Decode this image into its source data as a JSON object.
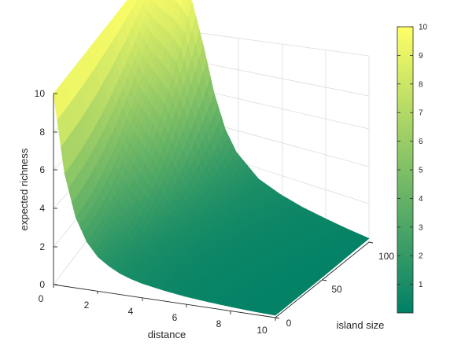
{
  "chart_data": {
    "type": "surface",
    "colormap": "summer",
    "colormap_low": "#008066",
    "colormap_high": "#ffff66",
    "xlabel": "distance",
    "ylabel": "island size",
    "zlabel": "expected richness",
    "xlim": [
      0,
      10
    ],
    "ylim": [
      0,
      100
    ],
    "zlim": [
      0,
      10
    ],
    "x_ticks": [
      "0",
      "2",
      "4",
      "6",
      "8",
      "10"
    ],
    "y_ticks": [
      "0",
      "50",
      "100"
    ],
    "z_ticks": [
      "0",
      "2",
      "4",
      "6",
      "8",
      "10"
    ],
    "colorbar_ticks": [
      "1",
      "2",
      "3",
      "4",
      "5",
      "6",
      "7",
      "8",
      "9",
      "10"
    ],
    "colorbar_range": [
      0,
      10
    ],
    "grid": true,
    "surface_samples": {
      "distance": [
        0,
        0.5,
        1,
        1.5,
        2,
        2.5,
        3,
        3.5,
        4,
        5,
        6,
        7,
        8,
        9,
        10
      ],
      "small_island": [
        10,
        5.9,
        3.7,
        2.5,
        1.8,
        1.4,
        1.1,
        0.9,
        0.75,
        0.55,
        0.4,
        0.3,
        0.22,
        0.16,
        0.12
      ],
      "large_island": [
        10,
        10,
        10,
        10,
        9.4,
        7.3,
        4.9,
        3.2,
        2.2,
        1.2,
        0.8,
        0.55,
        0.4,
        0.28,
        0.2
      ]
    }
  }
}
